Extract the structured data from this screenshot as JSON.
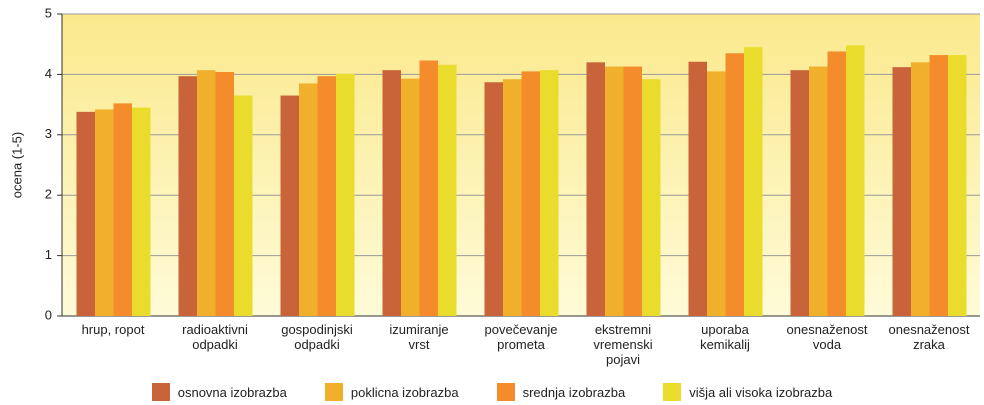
{
  "chart_data": {
    "type": "bar",
    "y_label": "ocena (1-5)",
    "categories": [
      "hrup, ropot",
      "radioaktivni\nodpadki",
      "gospodinjski\nodpadki",
      "izumiranje\nvrst",
      "povečevanje\nprometa",
      "ekstremni\nvremenski\npojavi",
      "uporaba\nkemikalij",
      "onesnaženost\nvoda",
      "onesnaženost\nzraka"
    ],
    "series": [
      {
        "name": "osnovna izobrazba",
        "color": "#c9643a",
        "values": [
          3.38,
          3.97,
          3.65,
          4.07,
          3.87,
          4.2,
          4.21,
          4.07,
          4.12
        ]
      },
      {
        "name": "poklicna izobrazba",
        "color": "#f0b02c",
        "values": [
          3.42,
          4.07,
          3.85,
          3.93,
          3.92,
          4.13,
          4.05,
          4.13,
          4.2
        ]
      },
      {
        "name": "srednja izobrazba",
        "color": "#f58c2c",
        "values": [
          3.52,
          4.04,
          3.97,
          4.23,
          4.05,
          4.13,
          4.35,
          4.38,
          4.32
        ]
      },
      {
        "name": "višja ali visoka izobrazba",
        "color": "#e9dc2c",
        "values": [
          3.45,
          3.65,
          4.01,
          4.16,
          4.07,
          3.92,
          4.45,
          4.48,
          4.32
        ]
      }
    ],
    "ylim": [
      0,
      5
    ],
    "yticks": [
      0,
      1,
      2,
      3,
      4,
      5
    ],
    "grid": true
  }
}
